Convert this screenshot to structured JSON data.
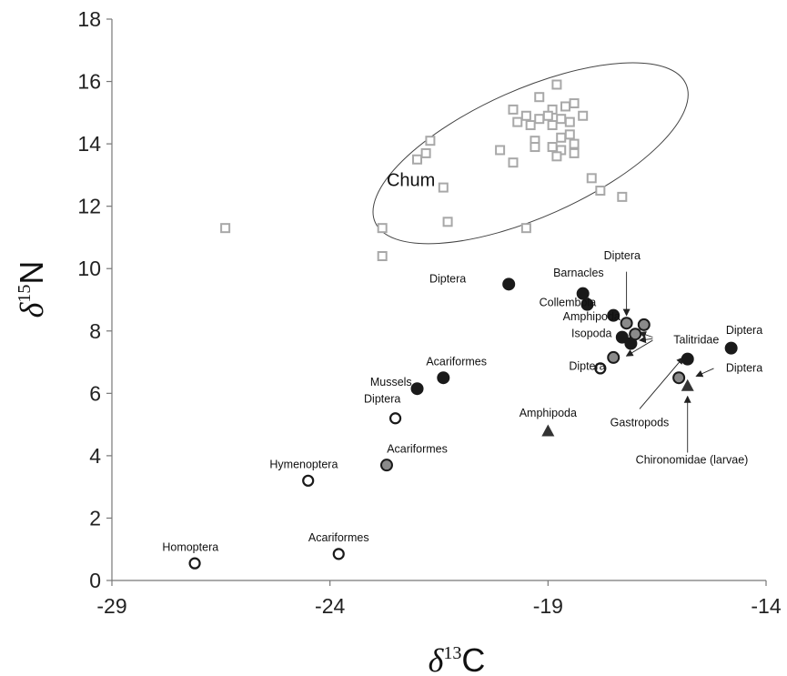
{
  "chart_data": {
    "type": "scatter",
    "xlabel": "δ13C",
    "ylabel": "δ15N",
    "xlim": [
      -29,
      -14
    ],
    "ylim": [
      0,
      18
    ],
    "x_ticks": [
      -29,
      -24,
      -19,
      -14
    ],
    "y_ticks": [
      0,
      2,
      4,
      6,
      8,
      10,
      12,
      14,
      16,
      18
    ],
    "grid": false,
    "legend": "none",
    "ellipse": {
      "label": "Chum",
      "cx": -19.4,
      "cy": 13.7,
      "rx": 3.9,
      "ry": 3.3,
      "color": "#444444"
    },
    "colors": {
      "chum": "#a8a8a8",
      "black": "#1a1a1a",
      "gray": "#8a8a8a",
      "outline": "#1a1a1a"
    },
    "series": [
      {
        "name": "Chum",
        "marker": "square-open",
        "points": [
          [
            -18.8,
            15.9
          ],
          [
            -19.2,
            15.5
          ],
          [
            -18.4,
            15.3
          ],
          [
            -18.6,
            15.2
          ],
          [
            -18.9,
            15.1
          ],
          [
            -19.8,
            15.1
          ],
          [
            -19.5,
            14.9
          ],
          [
            -19.2,
            14.8
          ],
          [
            -19.0,
            14.9
          ],
          [
            -18.7,
            14.8
          ],
          [
            -18.5,
            14.7
          ],
          [
            -19.7,
            14.7
          ],
          [
            -19.4,
            14.6
          ],
          [
            -18.9,
            14.6
          ],
          [
            -18.2,
            14.9
          ],
          [
            -18.5,
            14.3
          ],
          [
            -18.7,
            14.2
          ],
          [
            -19.3,
            14.1
          ],
          [
            -18.4,
            14.0
          ],
          [
            -18.9,
            13.9
          ],
          [
            -19.3,
            13.9
          ],
          [
            -18.7,
            13.8
          ],
          [
            -18.4,
            13.7
          ],
          [
            -18.8,
            13.6
          ],
          [
            -20.1,
            13.8
          ],
          [
            -19.8,
            13.4
          ],
          [
            -21.7,
            14.1
          ],
          [
            -21.8,
            13.7
          ],
          [
            -22.0,
            13.5
          ],
          [
            -18.0,
            12.9
          ],
          [
            -17.8,
            12.5
          ],
          [
            -17.3,
            12.3
          ],
          [
            -21.4,
            12.6
          ],
          [
            -21.3,
            11.5
          ],
          [
            -19.5,
            11.3
          ],
          [
            -22.8,
            11.3
          ],
          [
            -26.4,
            11.3
          ],
          [
            -22.8,
            10.4
          ]
        ]
      },
      {
        "name": "Black circles",
        "marker": "circle-filled",
        "points": [
          [
            -19.9,
            9.5
          ],
          [
            -18.2,
            9.2
          ],
          [
            -18.1,
            8.85
          ],
          [
            -17.5,
            8.5
          ],
          [
            -17.3,
            7.8
          ],
          [
            -17.1,
            7.6
          ],
          [
            -15.8,
            7.1
          ],
          [
            -14.8,
            7.45
          ],
          [
            -22.0,
            6.15
          ],
          [
            -21.4,
            6.5
          ]
        ]
      },
      {
        "name": "Gray circles",
        "marker": "circle-gray",
        "points": [
          [
            -17.2,
            8.25
          ],
          [
            -16.8,
            8.2
          ],
          [
            -17.0,
            7.9
          ],
          [
            -17.5,
            7.15
          ],
          [
            -16.0,
            6.5
          ],
          [
            -22.7,
            3.7
          ]
        ]
      },
      {
        "name": "Open circles",
        "marker": "circle-open",
        "points": [
          [
            -17.8,
            6.8
          ],
          [
            -22.5,
            5.2
          ],
          [
            -24.5,
            3.2
          ],
          [
            -23.8,
            0.85
          ],
          [
            -27.1,
            0.55
          ]
        ]
      },
      {
        "name": "Triangles",
        "marker": "triangle-filled",
        "points": [
          [
            -19.0,
            4.8
          ],
          [
            -15.8,
            6.25
          ]
        ]
      }
    ],
    "annotations": [
      {
        "text": "Diptera",
        "x": -21.3,
        "y": 9.55
      },
      {
        "text": "Diptera",
        "x": -17.3,
        "y": 10.3
      },
      {
        "text": "Barnacles",
        "x": -18.3,
        "y": 9.75
      },
      {
        "text": "Collembola",
        "x": -18.55,
        "y": 8.8
      },
      {
        "text": "Amphipoda",
        "x": -18.0,
        "y": 8.35
      },
      {
        "text": "Isopoda",
        "x": -18.0,
        "y": 7.8
      },
      {
        "text": "Talitridae",
        "x": -15.6,
        "y": 7.6
      },
      {
        "text": "Diptera",
        "x": -14.5,
        "y": 7.9
      },
      {
        "text": "Diptera",
        "x": -18.1,
        "y": 6.75
      },
      {
        "text": "Diptera",
        "x": -14.5,
        "y": 6.7
      },
      {
        "text": "Acariformes",
        "x": -21.1,
        "y": 6.9
      },
      {
        "text": "Mussels",
        "x": -22.6,
        "y": 6.25
      },
      {
        "text": "Diptera",
        "x": -22.8,
        "y": 5.7
      },
      {
        "text": "Amphipoda",
        "x": -19.0,
        "y": 5.25
      },
      {
        "text": "Gastropods",
        "x": -16.9,
        "y": 4.95
      },
      {
        "text": "Chironomidae (larvae)",
        "x": -15.7,
        "y": 3.75
      },
      {
        "text": "Acariformes",
        "x": -22.0,
        "y": 4.1
      },
      {
        "text": "Hymenoptera",
        "x": -24.6,
        "y": 3.6
      },
      {
        "text": "Acariformes",
        "x": -23.8,
        "y": 1.25
      },
      {
        "text": "Homoptera",
        "x": -27.2,
        "y": 0.95
      }
    ],
    "arrows": [
      {
        "from": [
          -17.2,
          9.9
        ],
        "to": [
          -17.2,
          8.5
        ]
      },
      {
        "from": [
          -16.6,
          7.8
        ],
        "to": [
          -16.9,
          7.95
        ]
      },
      {
        "from": [
          -16.6,
          7.75
        ],
        "to": [
          -16.9,
          7.7
        ]
      },
      {
        "from": [
          -16.6,
          7.7
        ],
        "to": [
          -17.2,
          7.2
        ]
      },
      {
        "from": [
          -16.9,
          5.5
        ],
        "to": [
          -15.9,
          7.15
        ]
      },
      {
        "from": [
          -15.8,
          4.1
        ],
        "to": [
          -15.8,
          5.9
        ]
      },
      {
        "from": [
          -15.2,
          6.8
        ],
        "to": [
          -15.6,
          6.55
        ]
      }
    ]
  }
}
